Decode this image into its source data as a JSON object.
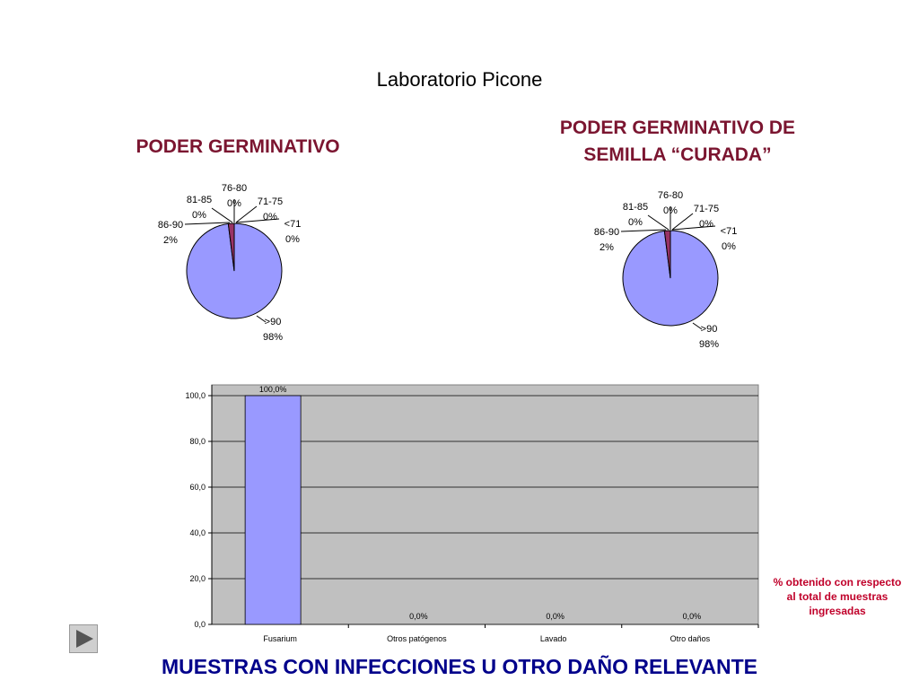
{
  "page": {
    "title": "Laboratorio Picone",
    "bottom_title": "MUESTRAS CON INFECCIONES U OTRO DAÑO RELEVANTE",
    "note": "% obtenido con respecto al total de muestras ingresadas"
  },
  "colors": {
    "pie_main": "#9999ff",
    "pie_slice": "#993366",
    "bar_fill": "#9999ff",
    "plot_bg": "#c0c0c0",
    "title_red": "#7b1530",
    "title_blue": "#00008b",
    "note_red": "#c0002a"
  },
  "icons": {
    "nav": "play-arrow-icon"
  },
  "chart_data": [
    {
      "type": "pie",
      "title": "PODER GERMINATIVO",
      "slices": [
        {
          "label": ">90",
          "pct_label": "98%",
          "value": 98
        },
        {
          "label": "86-90",
          "pct_label": "2%",
          "value": 2
        },
        {
          "label": "81-85",
          "pct_label": "0%",
          "value": 0
        },
        {
          "label": "76-80",
          "pct_label": "0%",
          "value": 0
        },
        {
          "label": "71-75",
          "pct_label": "0%",
          "value": 0
        },
        {
          "label": "<71",
          "pct_label": "0%",
          "value": 0
        }
      ]
    },
    {
      "type": "pie",
      "title_lines": [
        "PODER GERMINATIVO DE",
        "SEMILLA “CURADA”"
      ],
      "slices": [
        {
          "label": ">90",
          "pct_label": "98%",
          "value": 98
        },
        {
          "label": "86-90",
          "pct_label": "2%",
          "value": 2
        },
        {
          "label": "81-85",
          "pct_label": "0%",
          "value": 0
        },
        {
          "label": "76-80",
          "pct_label": "0%",
          "value": 0
        },
        {
          "label": "71-75",
          "pct_label": "0%",
          "value": 0
        },
        {
          "label": "<71",
          "pct_label": "0%",
          "value": 0
        }
      ]
    },
    {
      "type": "bar",
      "categories": [
        "Fusarium",
        "Otros patógenos",
        "Lavado",
        "Otro daños"
      ],
      "values": [
        100.0,
        0.0,
        0.0,
        0.0
      ],
      "data_labels": [
        "100,0%",
        "0,0%",
        "0,0%",
        "0,0%"
      ],
      "yticks": [
        "0,0",
        "20,0",
        "40,0",
        "60,0",
        "80,0",
        "100,0"
      ],
      "ylim": [
        0,
        100
      ],
      "grid": true
    }
  ]
}
